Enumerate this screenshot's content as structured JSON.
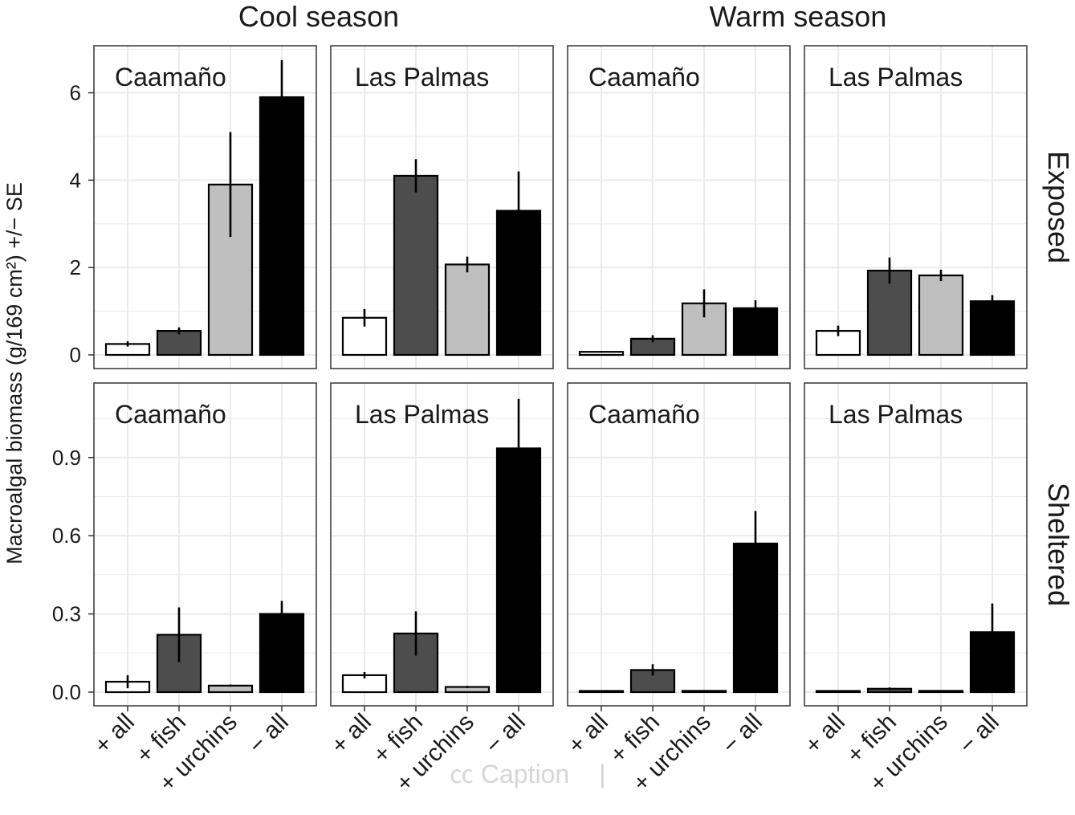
{
  "chart_data": {
    "type": "bar",
    "ylabel": "Macroalgal biomass (g/169 cm²) +/− SE",
    "categories": [
      "+ all",
      "+ fish",
      "+ urchins",
      "− all"
    ],
    "column_strips": [
      "Cool season",
      "Warm season"
    ],
    "row_strips": [
      "Exposed",
      "Sheltered"
    ],
    "bar_colors": [
      "#ffffff",
      "#4d4d4d",
      "#bfbfbf",
      "#000000"
    ],
    "rows": [
      {
        "label": "Exposed",
        "ylim": [
          0,
          7
        ],
        "yticks": [
          0,
          2,
          4,
          6
        ],
        "ytick_labels": [
          "0",
          "2",
          "4",
          "6"
        ],
        "panels": [
          {
            "season": "Cool season",
            "site": "Caamaño",
            "values": [
              0.25,
              0.55,
              3.9,
              5.9
            ],
            "se": [
              0.06,
              0.08,
              1.2,
              0.85
            ]
          },
          {
            "season": "Cool season",
            "site": "Las Palmas",
            "values": [
              0.85,
              4.1,
              2.07,
              3.3
            ],
            "se": [
              0.2,
              0.38,
              0.18,
              0.9
            ]
          },
          {
            "season": "Warm season",
            "site": "Caamaño",
            "values": [
              0.07,
              0.37,
              1.18,
              1.07
            ],
            "se": [
              0.02,
              0.08,
              0.32,
              0.18
            ]
          },
          {
            "season": "Warm season",
            "site": "Las Palmas",
            "values": [
              0.55,
              1.93,
              1.82,
              1.23
            ],
            "se": [
              0.12,
              0.3,
              0.13,
              0.14
            ]
          }
        ]
      },
      {
        "label": "Sheltered",
        "ylim": [
          0,
          1.17
        ],
        "yticks": [
          0,
          0.3,
          0.6,
          0.9
        ],
        "ytick_labels": [
          "0.0",
          "0.3",
          "0.6",
          "0.9"
        ],
        "panels": [
          {
            "season": "Cool season",
            "site": "Caamaño",
            "values": [
              0.04,
              0.22,
              0.025,
              0.3
            ],
            "se": [
              0.025,
              0.105,
              0.004,
              0.05
            ]
          },
          {
            "season": "Cool season",
            "site": "Las Palmas",
            "values": [
              0.065,
              0.225,
              0.02,
              0.935
            ],
            "se": [
              0.012,
              0.085,
              0.004,
              0.19
            ]
          },
          {
            "season": "Warm season",
            "site": "Caamaño",
            "values": [
              0.003,
              0.085,
              0.005,
              0.57
            ],
            "se": [
              0.001,
              0.022,
              0.001,
              0.125
            ]
          },
          {
            "season": "Warm season",
            "site": "Las Palmas",
            "values": [
              0.003,
              0.013,
              0.005,
              0.23
            ],
            "se": [
              0.001,
              0.005,
              0.001,
              0.11
            ]
          }
        ]
      }
    ],
    "grid": true,
    "legend": "none"
  },
  "overlay": {
    "caption_label": "Caption",
    "caption_icon": "closed-captions-icon"
  }
}
